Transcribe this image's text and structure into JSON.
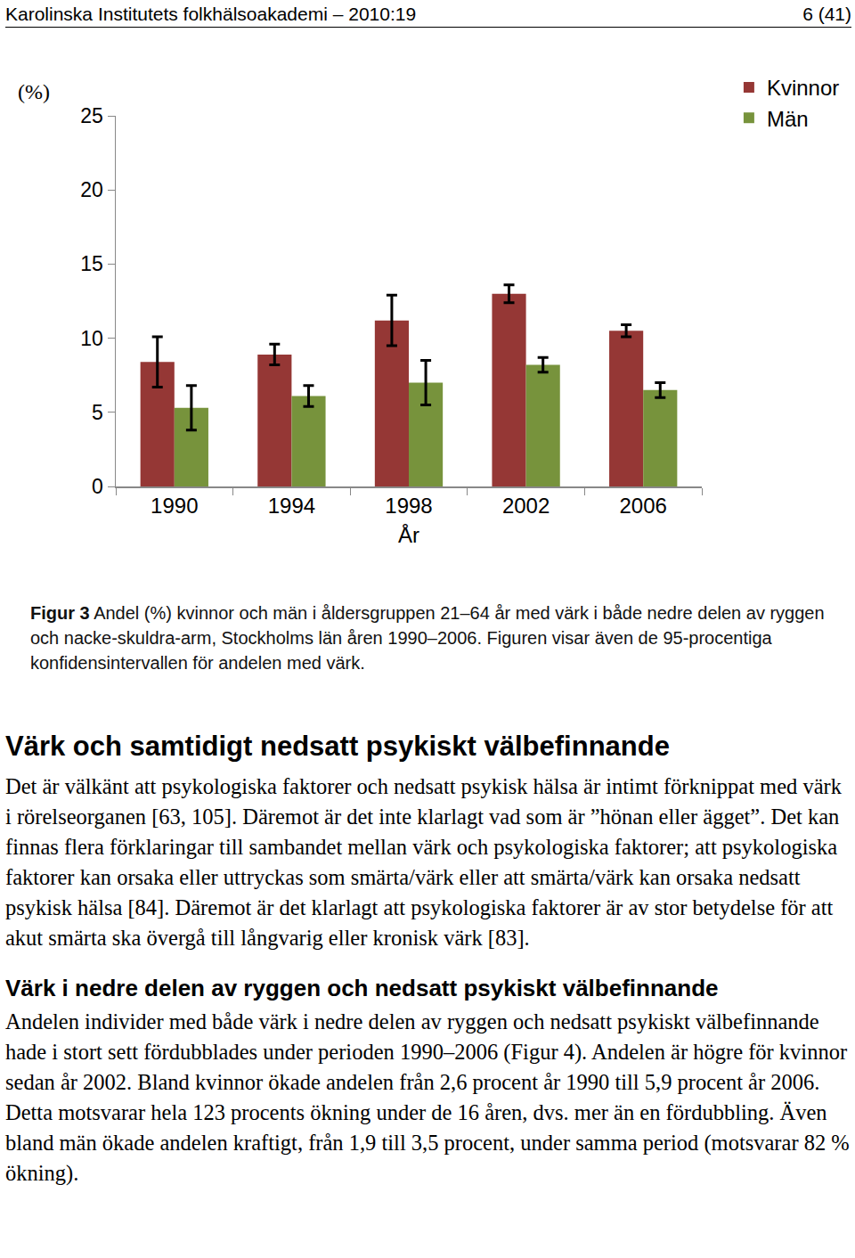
{
  "header": {
    "title": "Karolinska Institutets folkhälsoakademi – 2010:19",
    "page": "6 (41)"
  },
  "chart_data": {
    "type": "bar",
    "ylabel": "(%)",
    "xlabel": "År",
    "categories": [
      "1990",
      "1994",
      "1998",
      "2002",
      "2006"
    ],
    "series": [
      {
        "name": "Kvinnor",
        "color": "#953735",
        "values": [
          8.4,
          8.9,
          11.2,
          13.0,
          10.5
        ],
        "error": [
          1.7,
          0.7,
          1.7,
          0.6,
          0.4
        ]
      },
      {
        "name": "Män",
        "color": "#77933c",
        "values": [
          5.3,
          6.1,
          7.0,
          8.2,
          6.5
        ],
        "error": [
          1.5,
          0.7,
          1.5,
          0.5,
          0.5
        ]
      }
    ],
    "ylim": [
      0,
      25
    ],
    "yticks": [
      0,
      5,
      10,
      15,
      20,
      25
    ],
    "grid": false,
    "legend": "top right"
  },
  "caption": {
    "label": "Figur 3",
    "text": "Andel (%) kvinnor och män i åldersgruppen 21–64 år med värk i både nedre delen av ryggen och nacke-skuldra-arm, Stockholms län åren 1990–2006. Figuren visar även de 95-procentiga konfidensintervallen för andelen med värk."
  },
  "sections": [
    {
      "heading": "Värk och samtidigt nedsatt psykiskt välbefinnande",
      "paragraphs": [
        "Det är välkänt att psykologiska faktorer och nedsatt psykisk hälsa är intimt förknippat med värk i rörelseorganen [63, 105]. Däremot är det inte klarlagt vad som är ”hönan eller ägget”. Det kan finnas flera förklaringar till sambandet mellan värk och psykologiska faktorer; att psykologiska faktorer kan orsaka eller uttryckas som smärta/värk eller att smärta/värk kan orsaka nedsatt psykisk hälsa [84]. Däremot är det klarlagt att psykologiska faktorer är av stor betydelse för att akut smärta ska övergå till långvarig eller kronisk värk [83]."
      ]
    },
    {
      "heading": "Värk i nedre delen av ryggen och nedsatt psykiskt välbefinnande",
      "paragraphs": [
        "Andelen individer med både värk i nedre delen av ryggen och nedsatt psykiskt välbefinnande hade i stort sett fördubblades under perioden 1990–2006 (Figur 4). Andelen är högre för kvinnor sedan år 2002. Bland kvinnor ökade andelen från 2,6 procent år 1990 till 5,9 procent år 2006. Detta motsvarar hela 123 procents ökning under de 16 åren, dvs. mer än en fördubbling. Även bland män ökade andelen kraftigt, från 1,9 till 3,5 procent, under samma period (motsvarar 82 % ökning)."
      ]
    }
  ]
}
